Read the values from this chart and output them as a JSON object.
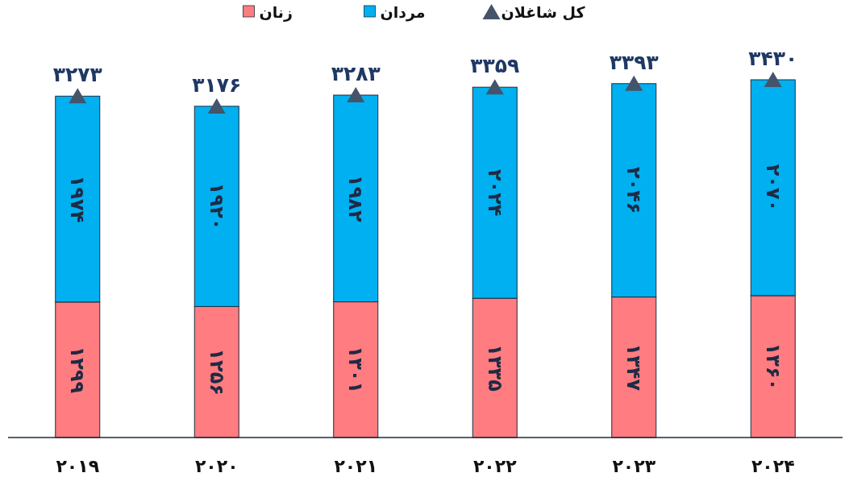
{
  "chart_data": {
    "type": "bar",
    "stacked": true,
    "legend": "top",
    "categories": [
      "۲۰۱۹",
      "۲۰۲۰",
      "۲۰۲۱",
      "۲۰۲۲",
      "۲۰۲۳",
      "۲۰۲۴"
    ],
    "series": [
      {
        "name": "زنان",
        "color": "#ff7c80",
        "values": [
          1299,
          1256,
          1301,
          1335,
          1347,
          1360
        ],
        "value_labels": [
          "۱۲۹۹",
          "۱۲۵۶",
          "۱۳۰۱",
          "۱۳۳۵",
          "۱۳۴۷",
          "۱۳۶۰"
        ]
      },
      {
        "name": "مردان",
        "color": "#00b0f0",
        "values": [
          1974,
          1920,
          1982,
          2024,
          2046,
          2070
        ],
        "value_labels": [
          "۱۹۷۴",
          "۱۹۲۰",
          "۱۹۸۲",
          "۲۰۲۴",
          "۲۰۴۶",
          "۲۰۷۰"
        ]
      },
      {
        "name": "کل شاغلان",
        "type": "scatter",
        "marker": "triangle",
        "color": "#44546a",
        "values": [
          3273,
          3176,
          3283,
          3359,
          3393,
          3430
        ],
        "value_labels": [
          "۳۲۷۳",
          "۳۱۷۶",
          "۳۲۸۳",
          "۳۳۵۹",
          "۳۳۹۳",
          "۳۴۳۰"
        ]
      }
    ]
  }
}
